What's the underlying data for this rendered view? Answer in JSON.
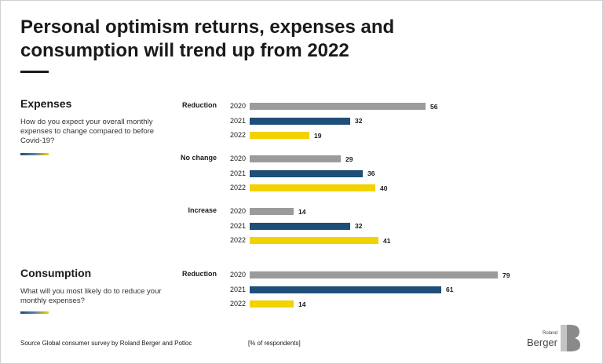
{
  "title": "Personal optimism returns, expenses and consumption will trend up from 2022",
  "sections": {
    "expenses": {
      "title": "Expenses",
      "question": "How do you expect your overall monthly expenses to change compared to before Covid-19?"
    },
    "consumption": {
      "title": "Consumption",
      "question": "What will you most likely do to reduce your monthly expenses?"
    }
  },
  "colors": {
    "2020": "#9b9b9b",
    "2021": "#1f4e79",
    "2022": "#f2d200"
  },
  "chart_data": {
    "type": "bar",
    "orientation": "horizontal",
    "years": [
      "2020",
      "2021",
      "2022"
    ],
    "groups": [
      {
        "section": "Expenses",
        "label": "Reduction",
        "values": [
          56,
          32,
          19
        ]
      },
      {
        "section": "Expenses",
        "label": "No change",
        "values": [
          29,
          36,
          40
        ]
      },
      {
        "section": "Expenses",
        "label": "Increase",
        "values": [
          14,
          32,
          41
        ]
      },
      {
        "section": "Consumption",
        "label": "Reduction",
        "values": [
          79,
          61,
          14
        ]
      }
    ],
    "unit": "[% of respondents]",
    "xlim": [
      0,
      79
    ]
  },
  "source": "Source Global consumer survey by Roland Berger and Potloc",
  "logo": {
    "line1": "Roland",
    "line2": "Berger"
  }
}
